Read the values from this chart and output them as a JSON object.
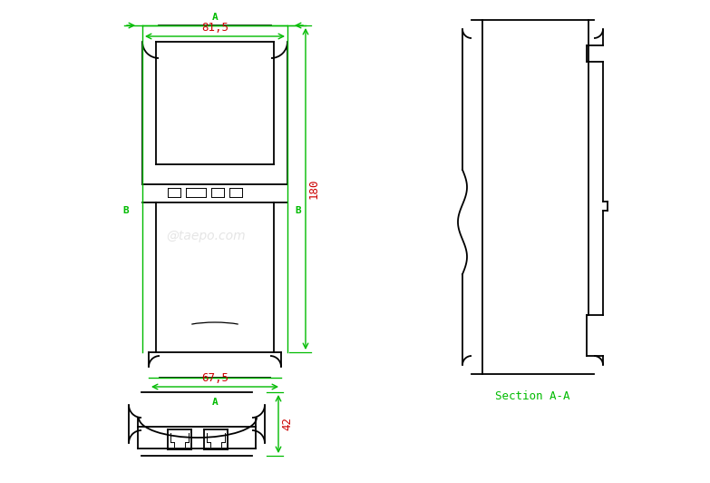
{
  "bg_color": "#ffffff",
  "line_color": "#000000",
  "green_color": "#00bb00",
  "red_color": "#cc0000",
  "dim_81_5": "81,5",
  "dim_67_5": "67,5",
  "dim_180": "180",
  "dim_42": "42",
  "label_A": "A",
  "label_B": "B",
  "label_section": "Section A-A",
  "watermark": "@taepo.com"
}
